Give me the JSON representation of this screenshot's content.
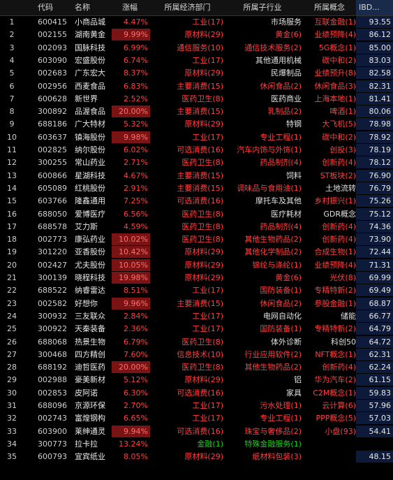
{
  "headers": {
    "code": "代码",
    "name": "名称",
    "chg": "涨幅",
    "ind": "所属经济部门",
    "sub": "所属子行业",
    "con": "所属概念",
    "ibd": "IBD..."
  },
  "rows": [
    {
      "idx": "1",
      "code": "600415",
      "name": "小商品城",
      "chg": "4.47%",
      "ind": "工业(17)",
      "sub": "市场服务",
      "con": "互联金融(1)",
      "ibd": "93.55",
      "sub_w": true
    },
    {
      "idx": "2",
      "code": "002155",
      "name": "湖南黄金",
      "chg": "9.99%",
      "lim": true,
      "ind": "原材料(29)",
      "sub": "黄金(6)",
      "con": "业绩预降(4)",
      "ibd": "86.12"
    },
    {
      "idx": "3",
      "code": "002093",
      "name": "国脉科技",
      "chg": "6.99%",
      "ind": "通信服务(10)",
      "sub": "通信技术服务(2)",
      "con": "5G概念(1)",
      "ibd": "85.00"
    },
    {
      "idx": "4",
      "code": "603090",
      "name": "宏盛股份",
      "chg": "6.74%",
      "ind": "工业(17)",
      "sub": "其他通用机械",
      "con": "碳中和(2)",
      "ibd": "83.03",
      "sub_w": true
    },
    {
      "idx": "5",
      "code": "002683",
      "name": "广东宏大",
      "chg": "8.37%",
      "ind": "原材料(29)",
      "sub": "民爆制品",
      "con": "业绩预升(8)",
      "ibd": "82.58",
      "sub_w": true
    },
    {
      "idx": "6",
      "code": "002956",
      "name": "西麦食品",
      "chg": "6.83%",
      "ind": "主要消费(15)",
      "sub": "休闲食品(2)",
      "con": "休闲食品(3)",
      "ibd": "82.31"
    },
    {
      "idx": "7",
      "code": "600628",
      "name": "新世界",
      "chg": "2.52%",
      "ind": "医药卫生(8)",
      "sub": "医药商业",
      "con": "上海本地(1)",
      "ibd": "81.41",
      "sub_w": true
    },
    {
      "idx": "8",
      "code": "300892",
      "name": "品渥食品",
      "chg": "20.00%",
      "lim": true,
      "ind": "主要消费(15)",
      "sub": "乳制品(2)",
      "con": "啤酒(1)",
      "ibd": "80.06"
    },
    {
      "idx": "9",
      "code": "688186",
      "name": "广大特材",
      "chg": "5.32%",
      "ind": "原材料(29)",
      "sub": "特钢",
      "con": "大飞机(5)",
      "ibd": "78.98",
      "sub_w": true
    },
    {
      "idx": "10",
      "code": "603637",
      "name": "镇海股份",
      "chg": "9.98%",
      "lim": true,
      "ind": "工业(17)",
      "sub": "专业工程(1)",
      "con": "碳中和(2)",
      "ibd": "78.92"
    },
    {
      "idx": "11",
      "code": "002825",
      "name": "纳尔股份",
      "chg": "6.02%",
      "ind": "可选消费(16)",
      "sub": "汽车内饰与外饰(1)",
      "con": "创投(3)",
      "ibd": "78.19"
    },
    {
      "idx": "12",
      "code": "300255",
      "name": "常山药业",
      "chg": "2.71%",
      "ind": "医药卫生(8)",
      "sub": "药品制剂(4)",
      "con": "创新药(4)",
      "ibd": "78.12"
    },
    {
      "idx": "13",
      "code": "600866",
      "name": "星湖科技",
      "chg": "4.67%",
      "ind": "主要消费(15)",
      "sub": "饲料",
      "con": "ST板块(2)",
      "ibd": "76.90",
      "sub_w": true
    },
    {
      "idx": "14",
      "code": "605089",
      "name": "红桃股份",
      "chg": "2.91%",
      "ind": "主要消费(15)",
      "sub": "调味品与食用油(1)",
      "con": "土地流转",
      "ibd": "76.79",
      "con_w": true
    },
    {
      "idx": "15",
      "code": "603766",
      "name": "隆鑫通用",
      "chg": "7.25%",
      "ind": "可选消费(16)",
      "sub": "摩托车及其他",
      "con": "乡村振兴(1)",
      "ibd": "75.26",
      "sub_w": true
    },
    {
      "idx": "16",
      "code": "688050",
      "name": "爱博医疗",
      "chg": "6.56%",
      "ind": "医药卫生(8)",
      "sub": "医疗耗材",
      "con": "GDR概念",
      "ibd": "75.12",
      "sub_w": true,
      "con_w": true
    },
    {
      "idx": "17",
      "code": "688578",
      "name": "艾力斯",
      "chg": "4.59%",
      "ind": "医药卫生(8)",
      "sub": "药品制剂(4)",
      "con": "创新药(4)",
      "ibd": "74.36"
    },
    {
      "idx": "18",
      "code": "002773",
      "name": "康弘药业",
      "chg": "10.02%",
      "lim": true,
      "ind": "医药卫生(8)",
      "sub": "其他生物药品(2)",
      "con": "创新药(4)",
      "ibd": "73.90"
    },
    {
      "idx": "19",
      "code": "301220",
      "name": "亚香股份",
      "chg": "10.42%",
      "lim": true,
      "ind": "原材料(29)",
      "sub": "其他化学制品(2)",
      "con": "合成生物(1)",
      "ibd": "72.44"
    },
    {
      "idx": "20",
      "code": "002427",
      "name": "尤夫股份",
      "chg": "10.05%",
      "lim": true,
      "ind": "原材料(29)",
      "sub": "锦纶与涤纶(1)",
      "con": "业绩预降(4)",
      "ibd": "71.31"
    },
    {
      "idx": "21",
      "code": "300139",
      "name": "晓程科技",
      "chg": "19.98%",
      "lim": true,
      "ind": "原材料(29)",
      "sub": "黄金(6)",
      "con": "光伏(8)",
      "ibd": "69.99"
    },
    {
      "idx": "22",
      "code": "688522",
      "name": "纳睿雷达",
      "chg": "8.51%",
      "ind": "工业(17)",
      "sub": "国防装备(1)",
      "con": "专精特新(2)",
      "ibd": "69.49"
    },
    {
      "idx": "23",
      "code": "002582",
      "name": "好想你",
      "chg": "9.96%",
      "lim": true,
      "ind": "主要消费(15)",
      "sub": "休闲食品(2)",
      "con": "参股金融(1)",
      "ibd": "68.87"
    },
    {
      "idx": "24",
      "code": "300932",
      "name": "三友联众",
      "chg": "2.84%",
      "ind": "工业(17)",
      "sub": "电网自动化",
      "con": "储能",
      "ibd": "66.77",
      "sub_w": true,
      "con_w": true
    },
    {
      "idx": "25",
      "code": "300922",
      "name": "天秦装备",
      "chg": "2.36%",
      "ind": "工业(17)",
      "sub": "国防装备(1)",
      "con": "专精特新(2)",
      "ibd": "64.79"
    },
    {
      "idx": "26",
      "code": "688068",
      "name": "热景生物",
      "chg": "6.79%",
      "ind": "医药卫生(8)",
      "sub": "体外诊断",
      "con": "科创50",
      "ibd": "64.72",
      "sub_w": true,
      "con_w": true
    },
    {
      "idx": "27",
      "code": "300468",
      "name": "四方精创",
      "chg": "7.60%",
      "ind": "信息技术(10)",
      "sub": "行业应用软件(2)",
      "con": "NFT概念(1)",
      "ibd": "62.31"
    },
    {
      "idx": "28",
      "code": "688192",
      "name": "迪哲医药",
      "chg": "20.00%",
      "lim": true,
      "ind": "医药卫生(8)",
      "sub": "其他生物药品(2)",
      "con": "创新药(4)",
      "ibd": "62.24"
    },
    {
      "idx": "29",
      "code": "002988",
      "name": "豪美新材",
      "chg": "5.12%",
      "ind": "原材料(29)",
      "sub": "铝",
      "con": "华为汽车(2)",
      "ibd": "61.15",
      "sub_w": true
    },
    {
      "idx": "30",
      "code": "002853",
      "name": "皮阿诺",
      "chg": "6.30%",
      "ind": "可选消费(16)",
      "sub": "家具",
      "con": "C2M概念(1)",
      "ibd": "59.83",
      "sub_w": true
    },
    {
      "idx": "31",
      "code": "688096",
      "name": "京源环保",
      "chg": "2.70%",
      "ind": "工业(17)",
      "sub": "污水处理(1)",
      "con": "云计算(6)",
      "ibd": "57.96"
    },
    {
      "idx": "32",
      "code": "002743",
      "name": "富煌钢构",
      "chg": "6.65%",
      "ind": "工业(17)",
      "sub": "专业工程(1)",
      "con": "PPP概念(5)",
      "ibd": "57.03"
    },
    {
      "idx": "33",
      "code": "603900",
      "name": "莱绅通灵",
      "chg": "9.94%",
      "lim": true,
      "ind": "可选消费(16)",
      "sub": "珠宝与奢侈品(2)",
      "con": "小盘(93)",
      "ibd": "54.41"
    },
    {
      "idx": "34",
      "code": "300773",
      "name": "拉卡拉",
      "chg": "13.24%",
      "ind": "金融(1)",
      "sub": "特殊金融服务(1)",
      "con": "",
      "ibd": "",
      "green": true
    },
    {
      "idx": "35",
      "code": "600793",
      "name": "宜宾纸业",
      "chg": "8.05%",
      "ind": "原材料(29)",
      "sub": "纸材料包装(3)",
      "con": "",
      "ibd": "48.15"
    }
  ]
}
